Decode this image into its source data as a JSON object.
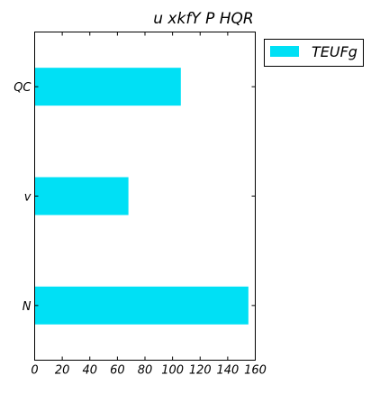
{
  "chart_data": {
    "type": "bar",
    "orientation": "horizontal",
    "title": "u xkfY P HQR",
    "xlabel": "",
    "ylabel": "",
    "categories": [
      "QC",
      "v",
      "N"
    ],
    "series": [
      {
        "name": "TEUFg",
        "values": [
          106,
          68,
          155
        ],
        "color": "#00e0f5"
      }
    ],
    "xlim": [
      0,
      160
    ],
    "xticks": [
      0,
      20,
      40,
      60,
      80,
      100,
      120,
      140,
      160
    ],
    "grid": false,
    "legend_position": "top-right-outside"
  }
}
